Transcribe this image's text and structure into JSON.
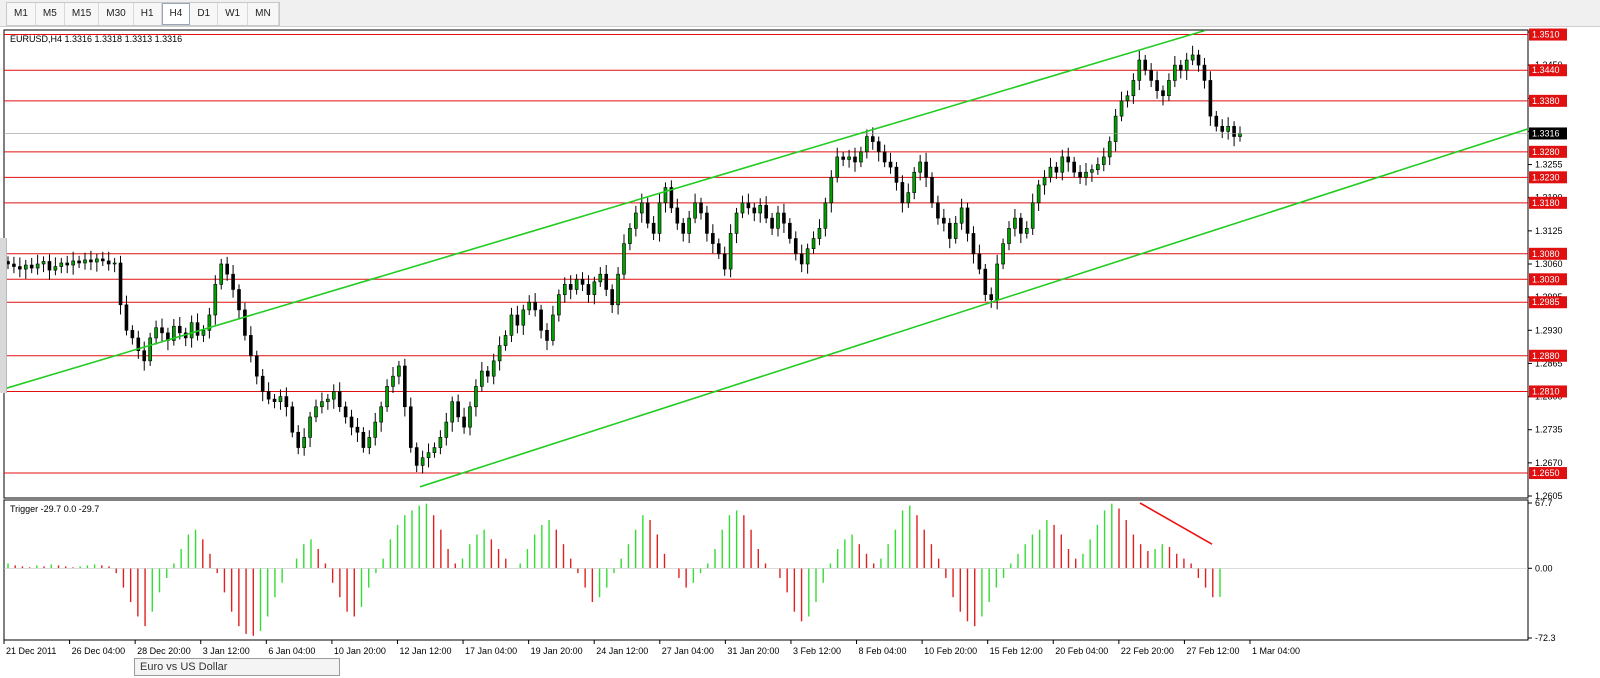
{
  "toolbar": {
    "timeframes": [
      "M1",
      "M5",
      "M15",
      "M30",
      "H1",
      "H4",
      "D1",
      "W1",
      "MN"
    ],
    "active": "H4"
  },
  "chart_data": [
    {
      "type": "candlestick",
      "title": "EURUSD,H4  1.3316 1.3318 1.3313 1.3316",
      "ylim": [
        1.2605,
        1.3515
      ],
      "y_ticks": [
        "1.3515",
        "1.3450",
        "1.3385",
        "1.3320",
        "1.3255",
        "1.3190",
        "1.3125",
        "1.3060",
        "1.2995",
        "1.2930",
        "1.2865",
        "1.2800",
        "1.2735",
        "1.2670",
        "1.2605"
      ],
      "x_ticks": [
        "21 Dec 2011",
        "26 Dec 04:00",
        "28 Dec 20:00",
        "3 Jan 12:00",
        "6 Jan 04:00",
        "10 Jan 20:00",
        "12 Jan 12:00",
        "17 Jan 04:00",
        "19 Jan 20:00",
        "24 Jan 12:00",
        "27 Jan 04:00",
        "31 Jan 20:00",
        "3 Feb 12:00",
        "8 Feb 04:00",
        "10 Feb 20:00",
        "15 Feb 12:00",
        "20 Feb 04:00",
        "22 Feb 20:00",
        "27 Feb 12:00",
        "1 Mar 04:00"
      ],
      "horizontal_lines": [
        {
          "price": 1.351,
          "label": "1.3510"
        },
        {
          "price": 1.344,
          "label": "1.3440"
        },
        {
          "price": 1.338,
          "label": "1.3380"
        },
        {
          "price": 1.328,
          "label": "1.3280"
        },
        {
          "price": 1.323,
          "label": "1.3230"
        },
        {
          "price": 1.318,
          "label": "1.3180"
        },
        {
          "price": 1.308,
          "label": "1.3080"
        },
        {
          "price": 1.303,
          "label": "1.3030"
        },
        {
          "price": 1.2985,
          "label": "1.2985"
        },
        {
          "price": 1.288,
          "label": "1.2880"
        },
        {
          "price": 1.281,
          "label": "1.2810"
        },
        {
          "price": 1.265,
          "label": "1.2650"
        }
      ],
      "current_price": "1.3316",
      "closes": [
        1.306,
        1.3055,
        1.305,
        1.3058,
        1.3052,
        1.306,
        1.3065,
        1.3048,
        1.3055,
        1.3062,
        1.3058,
        1.3066,
        1.3062,
        1.3068,
        1.3064,
        1.307,
        1.3066,
        1.306,
        1.3062,
        1.298,
        1.293,
        1.2915,
        1.289,
        1.287,
        1.2915,
        1.2935,
        1.2925,
        1.291,
        1.2938,
        1.2925,
        1.2915,
        1.2945,
        1.292,
        1.293,
        1.296,
        1.302,
        1.306,
        1.304,
        1.301,
        1.297,
        1.292,
        1.288,
        1.284,
        1.281,
        1.2795,
        1.279,
        1.28,
        1.278,
        1.273,
        1.27,
        1.272,
        1.276,
        1.278,
        1.279,
        1.2795,
        1.281,
        1.278,
        1.276,
        1.274,
        1.273,
        1.27,
        1.272,
        1.275,
        1.278,
        1.282,
        1.284,
        1.286,
        1.278,
        1.27,
        1.2665,
        1.268,
        1.269,
        1.27,
        1.272,
        1.275,
        1.279,
        1.276,
        1.274,
        1.278,
        1.282,
        1.285,
        1.284,
        1.287,
        1.29,
        1.292,
        1.296,
        1.294,
        1.297,
        1.2985,
        1.297,
        1.293,
        1.291,
        1.296,
        1.3,
        1.302,
        1.301,
        1.303,
        1.302,
        1.3,
        1.3025,
        1.304,
        1.301,
        1.298,
        1.304,
        1.31,
        1.313,
        1.316,
        1.318,
        1.314,
        1.312,
        1.318,
        1.321,
        1.317,
        1.314,
        1.312,
        1.315,
        1.318,
        1.316,
        1.312,
        1.31,
        1.308,
        1.305,
        1.312,
        1.316,
        1.318,
        1.317,
        1.316,
        1.3175,
        1.315,
        1.313,
        1.316,
        1.314,
        1.311,
        1.308,
        1.306,
        1.309,
        1.311,
        1.313,
        1.318,
        1.323,
        1.327,
        1.3265,
        1.327,
        1.326,
        1.328,
        1.331,
        1.33,
        1.328,
        1.326,
        1.325,
        1.322,
        1.318,
        1.32,
        1.324,
        1.326,
        1.323,
        1.318,
        1.315,
        1.314,
        1.311,
        1.314,
        1.317,
        1.312,
        1.308,
        1.305,
        1.3,
        1.299,
        1.306,
        1.31,
        1.313,
        1.315,
        1.312,
        1.313,
        1.318,
        1.3215,
        1.323,
        1.325,
        1.324,
        1.327,
        1.326,
        1.324,
        1.323,
        1.324,
        1.3245,
        1.3255,
        1.327,
        1.33,
        1.335,
        1.338,
        1.339,
        1.342,
        1.346,
        1.344,
        1.342,
        1.34,
        1.339,
        1.342,
        1.345,
        1.344,
        1.346,
        1.347,
        1.345,
        1.342,
        1.335,
        1.333,
        1.332,
        1.333,
        1.331,
        1.3316
      ]
    },
    {
      "type": "histogram",
      "title": "Trigger -29.7 0.0 -29.7",
      "ylim": [
        -72.3,
        67.7
      ],
      "y_ticks": [
        "67.7",
        "0.00",
        "-72.3"
      ],
      "values": [
        5,
        3,
        2,
        1,
        3,
        2,
        4,
        3,
        2,
        1,
        2,
        3,
        4,
        3,
        2,
        -5,
        -20,
        -35,
        -50,
        -60,
        -45,
        -25,
        -10,
        5,
        20,
        35,
        40,
        30,
        15,
        -5,
        -25,
        -45,
        -60,
        -68,
        -70,
        -65,
        -50,
        -30,
        -15,
        0,
        10,
        25,
        30,
        20,
        5,
        -15,
        -30,
        -45,
        -50,
        -40,
        -20,
        -5,
        10,
        30,
        45,
        55,
        60,
        65,
        67,
        55,
        40,
        20,
        5,
        10,
        25,
        35,
        40,
        30,
        20,
        10,
        0,
        5,
        20,
        35,
        45,
        50,
        40,
        25,
        10,
        -5,
        -20,
        -35,
        -30,
        -20,
        -5,
        10,
        25,
        40,
        55,
        50,
        35,
        15,
        0,
        -10,
        -20,
        -15,
        -5,
        5,
        20,
        40,
        55,
        60,
        55,
        40,
        20,
        5,
        0,
        -10,
        -25,
        -45,
        -55,
        -50,
        -35,
        -15,
        5,
        20,
        30,
        35,
        25,
        15,
        5,
        10,
        25,
        40,
        60,
        65,
        55,
        40,
        25,
        10,
        -10,
        -30,
        -45,
        -55,
        -60,
        -50,
        -35,
        -20,
        -10,
        5,
        15,
        25,
        35,
        40,
        50,
        45,
        35,
        20,
        10,
        15,
        30,
        45,
        60,
        67,
        62,
        50,
        35,
        25,
        18,
        20,
        25,
        22,
        15,
        10,
        5,
        -10,
        -20,
        -30,
        -29.7
      ]
    }
  ],
  "status_bar": {
    "tooltip": "Euro vs US Dollar"
  }
}
